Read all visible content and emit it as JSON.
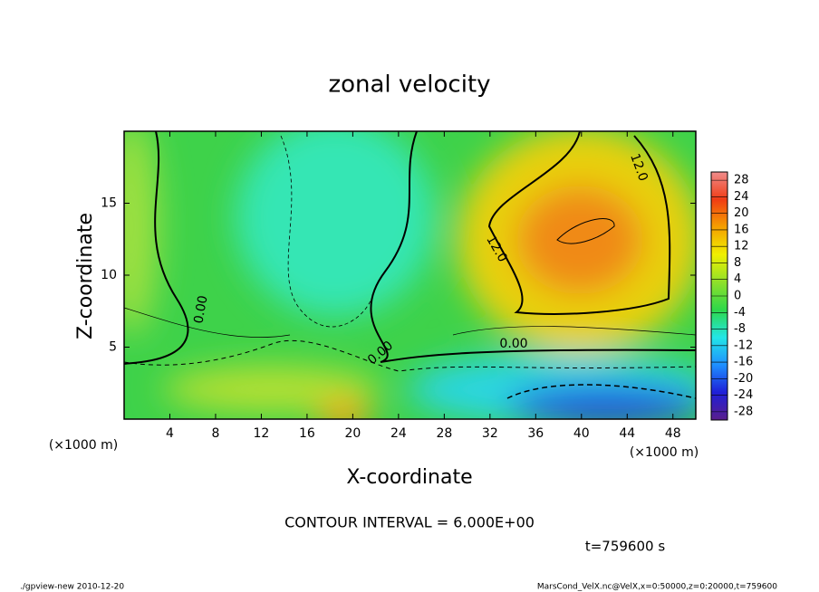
{
  "chart_data": {
    "type": "contour",
    "title": "zonal velocity",
    "xlabel": "X-coordinate",
    "ylabel": "Z-coordinate",
    "x_unit": "(×1000 m)",
    "xlim": [
      0,
      50
    ],
    "ylim": [
      0,
      20
    ],
    "xticks": [
      4,
      8,
      12,
      16,
      20,
      24,
      28,
      32,
      36,
      40,
      44,
      48
    ],
    "yticks": [
      5,
      10,
      15
    ],
    "clim": [
      -30,
      30
    ],
    "cticks": [
      28,
      24,
      20,
      16,
      12,
      8,
      4,
      0,
      -4,
      -8,
      -12,
      -16,
      -20,
      -24,
      -28
    ],
    "colormap": [
      "#5a1e8c",
      "#1f1fd8",
      "#1e90ff",
      "#23e6e6",
      "#2ed84a",
      "#8fe02a",
      "#f0f000",
      "#f5a000",
      "#f03c14",
      "#f08c8c"
    ],
    "contour_labels": [
      {
        "value": 0,
        "label": "0.00"
      },
      {
        "value": 0,
        "label": "0.00"
      },
      {
        "value": 0,
        "label": "0.00"
      },
      {
        "value": 12,
        "label": "12.0"
      },
      {
        "value": 12,
        "label": "12.0"
      }
    ],
    "contour_interval": "CONTOUR INTERVAL = 6.000E+00",
    "time": "t=759600 s",
    "footer_left": "./gpview-new  2010-12-20",
    "footer_right": "MarsCond_VelX.nc@VelX,x=0:50000,z=0:20000,t=759600"
  }
}
